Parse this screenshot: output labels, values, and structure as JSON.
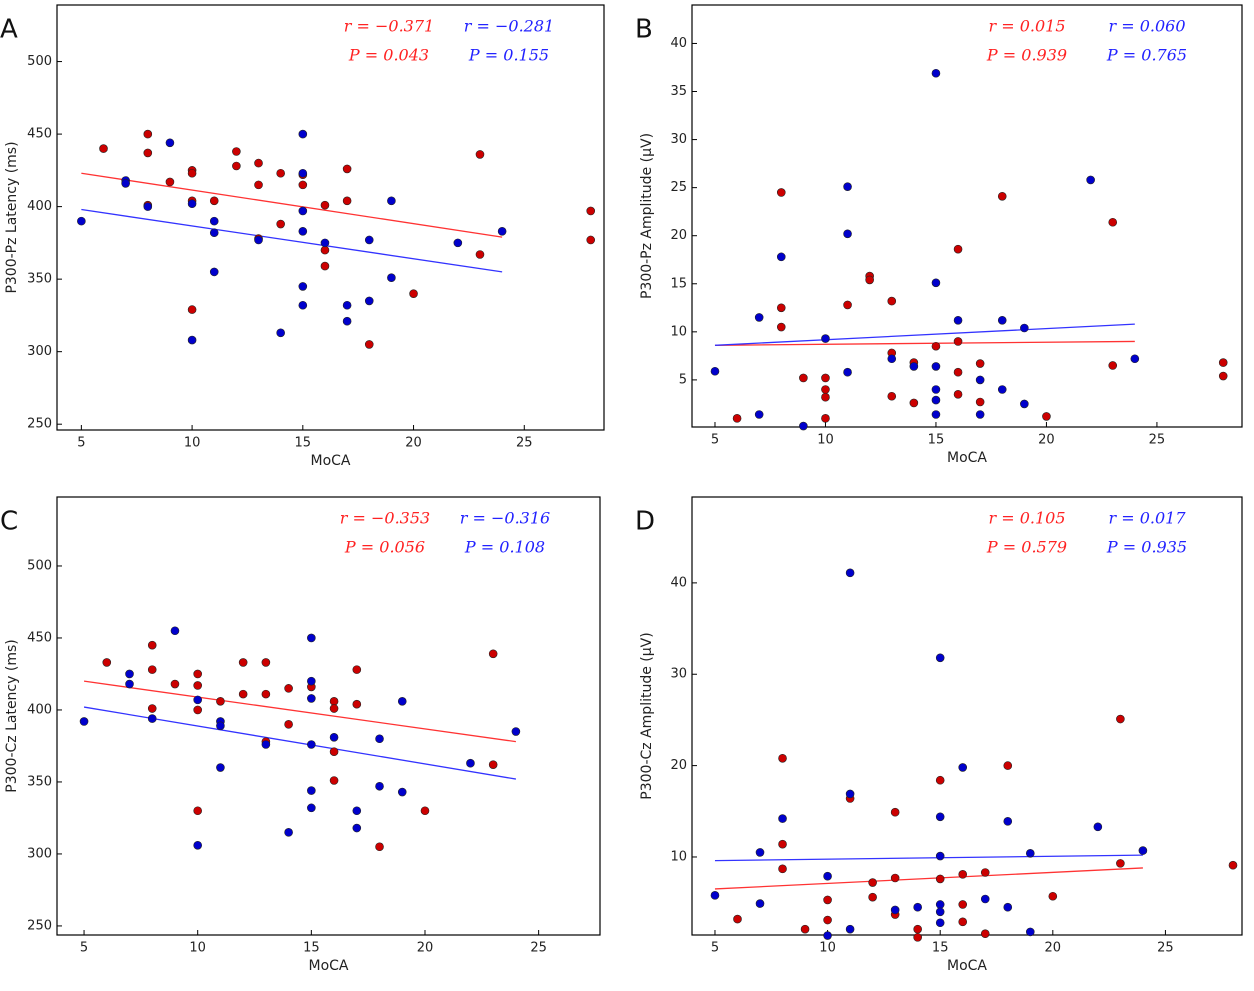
{
  "chart_data": [
    {
      "type": "scatter",
      "panel": "A",
      "xlabel": "MoCA",
      "ylabel": "P300-Pz Latency (ms)",
      "xlim": [
        3.9,
        28.6
      ],
      "ylim": [
        246,
        539
      ],
      "xticks": [
        5,
        10,
        15,
        20,
        25
      ],
      "yticks": [
        250,
        300,
        350,
        400,
        450,
        500
      ],
      "series": [
        {
          "color": "#cc0000",
          "x": [
            6,
            8,
            8,
            8,
            9,
            10,
            10,
            10,
            10,
            11,
            12,
            12,
            13,
            13,
            13,
            14,
            14,
            15,
            15,
            16,
            16,
            16,
            17,
            17,
            18,
            20,
            23,
            23,
            28,
            28
          ],
          "y": [
            440,
            450,
            437,
            401,
            417,
            425,
            423,
            404,
            329,
            404,
            438,
            428,
            430,
            415,
            378,
            423,
            388,
            422,
            415,
            401,
            370,
            359,
            426,
            404,
            305,
            340,
            436,
            367,
            397,
            377
          ]
        },
        {
          "color": "#0000cc",
          "x": [
            5,
            7,
            7,
            8,
            9,
            10,
            10,
            11,
            11,
            11,
            13,
            14,
            15,
            15,
            15,
            15,
            15,
            15,
            16,
            17,
            17,
            18,
            18,
            19,
            19,
            22,
            24
          ],
          "y": [
            390,
            418,
            416,
            400,
            444,
            402,
            308,
            390,
            382,
            355,
            377,
            313,
            450,
            423,
            397,
            383,
            345,
            332,
            375,
            332,
            321,
            377,
            335,
            404,
            351,
            375,
            383
          ]
        }
      ],
      "fits": [
        {
          "color": "#ff3333",
          "x": [
            5,
            24
          ],
          "y": [
            423,
            379
          ]
        },
        {
          "color": "#3333ff",
          "x": [
            5,
            24
          ],
          "y": [
            398,
            355
          ]
        }
      ],
      "annotations": [
        {
          "text": "r = −0.371",
          "color": "#ff2222"
        },
        {
          "text": "P = 0.043",
          "color": "#ff2222"
        },
        {
          "text": "r = −0.281",
          "color": "#2222ff"
        },
        {
          "text": "P = 0.155",
          "color": "#2222ff"
        }
      ]
    },
    {
      "type": "scatter",
      "panel": "B",
      "xlabel": "MoCA",
      "ylabel": "P300-Pz Amplitude (μV)",
      "xlim": [
        3.96,
        28.85
      ],
      "ylim": [
        0.1,
        44
      ],
      "xticks": [
        5,
        10,
        15,
        20,
        25
      ],
      "yticks": [
        5,
        10,
        15,
        20,
        25,
        30,
        35,
        40
      ],
      "series": [
        {
          "color": "#cc0000",
          "x": [
            6,
            8,
            8,
            8,
            9,
            10,
            10,
            10,
            10,
            11,
            12,
            12,
            13,
            13,
            13,
            14,
            14,
            15,
            16,
            16,
            16,
            16,
            17,
            17,
            18,
            20,
            23,
            23,
            28,
            28
          ],
          "y": [
            1,
            24.5,
            12.5,
            10.5,
            5.2,
            5.2,
            4,
            3.2,
            1,
            12.8,
            15.8,
            15.4,
            13.2,
            7.8,
            3.3,
            6.8,
            2.6,
            8.5,
            18.6,
            9,
            5.8,
            3.5,
            6.7,
            2.7,
            24.1,
            1.2,
            21.4,
            6.5,
            6.8,
            5.4
          ]
        },
        {
          "color": "#0000cc",
          "x": [
            5,
            7,
            7,
            8,
            9,
            10,
            11,
            11,
            11,
            13,
            14,
            15,
            15,
            15,
            15,
            15,
            15,
            16,
            17,
            17,
            18,
            18,
            19,
            19,
            22,
            24
          ],
          "y": [
            5.9,
            11.5,
            1.4,
            17.8,
            0.2,
            9.3,
            25.1,
            20.2,
            5.8,
            7.2,
            6.4,
            36.9,
            15.1,
            6.4,
            4,
            2.9,
            1.4,
            11.2,
            5,
            1.4,
            11.2,
            4,
            10.4,
            2.5,
            25.8,
            7.2
          ]
        }
      ],
      "fits": [
        {
          "color": "#ff3333",
          "x": [
            5,
            24
          ],
          "y": [
            8.6,
            9.0
          ]
        },
        {
          "color": "#3333ff",
          "x": [
            5,
            24
          ],
          "y": [
            8.6,
            10.8
          ]
        }
      ],
      "annotations": [
        {
          "text": "r = 0.015",
          "color": "#ff2222"
        },
        {
          "text": "P = 0.939",
          "color": "#ff2222"
        },
        {
          "text": "r = 0.060",
          "color": "#2222ff"
        },
        {
          "text": "P = 0.765",
          "color": "#2222ff"
        }
      ]
    },
    {
      "type": "scatter",
      "panel": "C",
      "xlabel": "MoCA",
      "ylabel": "P300-Cz Latency (ms)",
      "xlim": [
        3.81,
        27.7
      ],
      "ylim": [
        243.7,
        547.9
      ],
      "xticks": [
        5,
        10,
        15,
        20,
        25
      ],
      "yticks": [
        250,
        300,
        350,
        400,
        450,
        500
      ],
      "series": [
        {
          "color": "#cc0000",
          "x": [
            6,
            8,
            8,
            8,
            9,
            10,
            10,
            10,
            10,
            11,
            12,
            12,
            13,
            13,
            13,
            14,
            14,
            15,
            16,
            16,
            16,
            16,
            17,
            17,
            18,
            20,
            23,
            23
          ],
          "y": [
            433,
            445,
            428,
            401,
            418,
            425,
            417,
            400,
            330,
            406,
            433,
            411,
            433,
            411,
            378,
            415,
            390,
            416,
            406,
            401,
            371,
            351,
            428,
            404,
            305,
            330,
            439,
            362
          ]
        },
        {
          "color": "#0000cc",
          "x": [
            5,
            7,
            7,
            8,
            9,
            10,
            10,
            11,
            11,
            11,
            13,
            14,
            15,
            15,
            15,
            15,
            15,
            15,
            16,
            17,
            17,
            18,
            18,
            19,
            19,
            22,
            24
          ],
          "y": [
            392,
            425,
            418,
            394,
            455,
            407,
            306,
            392,
            389,
            360,
            376,
            315,
            450,
            420,
            408,
            376,
            344,
            332,
            381,
            330,
            318,
            380,
            347,
            406,
            343,
            363,
            385
          ]
        }
      ],
      "fits": [
        {
          "color": "#ff3333",
          "x": [
            5,
            24
          ],
          "y": [
            420,
            378
          ]
        },
        {
          "color": "#3333ff",
          "x": [
            5,
            24
          ],
          "y": [
            402,
            352
          ]
        }
      ],
      "annotations": [
        {
          "text": "r = −0.353",
          "color": "#ff2222"
        },
        {
          "text": "P = 0.056",
          "color": "#ff2222"
        },
        {
          "text": "r = −0.316",
          "color": "#2222ff"
        },
        {
          "text": "P = 0.108",
          "color": "#2222ff"
        }
      ]
    },
    {
      "type": "scatter",
      "panel": "D",
      "xlabel": "MoCA",
      "ylabel": "P300-Cz Amplitude (μV)",
      "xlim": [
        3.98,
        28.4
      ],
      "ylim": [
        1.46,
        49.4
      ],
      "xticks": [
        5,
        10,
        15,
        20,
        25
      ],
      "yticks": [
        10,
        20,
        30,
        40
      ],
      "series": [
        {
          "color": "#cc0000",
          "x": [
            6,
            8,
            8,
            8,
            9,
            10,
            10,
            11,
            12,
            12,
            13,
            13,
            13,
            14,
            14,
            15,
            15,
            16,
            16,
            16,
            17,
            17,
            18,
            20,
            23,
            23,
            28
          ],
          "y": [
            3.2,
            20.8,
            11.4,
            8.7,
            2.1,
            5.3,
            3.1,
            16.4,
            7.2,
            5.6,
            14.9,
            7.7,
            3.7,
            2.1,
            1.2,
            18.4,
            7.6,
            8.1,
            4.8,
            2.9,
            8.3,
            1.6,
            20,
            5.7,
            25.1,
            9.3,
            9.1
          ]
        },
        {
          "color": "#0000cc",
          "x": [
            5,
            7,
            7,
            8,
            10,
            10,
            11,
            11,
            11,
            13,
            14,
            15,
            15,
            15,
            15,
            15,
            15,
            16,
            17,
            18,
            18,
            19,
            19,
            22,
            24
          ],
          "y": [
            5.8,
            10.5,
            4.9,
            14.2,
            7.9,
            1.4,
            41.1,
            16.9,
            2.1,
            4.2,
            4.5,
            31.8,
            14.4,
            10.1,
            4.8,
            4,
            2.8,
            19.8,
            5.4,
            13.9,
            4.5,
            10.4,
            1.8,
            13.3,
            10.7
          ]
        }
      ],
      "fits": [
        {
          "color": "#ff3333",
          "x": [
            5,
            24
          ],
          "y": [
            6.5,
            8.8
          ]
        },
        {
          "color": "#3333ff",
          "x": [
            5,
            24
          ],
          "y": [
            9.6,
            10.2
          ]
        }
      ],
      "annotations": [
        {
          "text": "r = 0.105",
          "color": "#ff2222"
        },
        {
          "text": "P = 0.579",
          "color": "#ff2222"
        },
        {
          "text": "r = 0.017",
          "color": "#2222ff"
        },
        {
          "text": "P = 0.935",
          "color": "#2222ff"
        }
      ]
    }
  ]
}
